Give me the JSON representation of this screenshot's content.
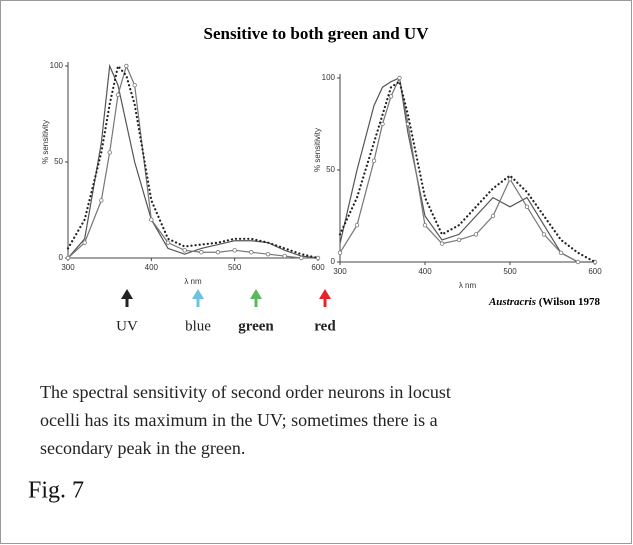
{
  "title": "Sensitive to both green and UV",
  "chart_data": [
    {
      "type": "line",
      "xlabel": "λ nm",
      "ylabel": "% sensitivity",
      "x": [
        300,
        320,
        340,
        350,
        360,
        370,
        380,
        400,
        420,
        440,
        460,
        480,
        500,
        520,
        540,
        560,
        580,
        600
      ],
      "xlim": [
        300,
        600
      ],
      "xticks": [
        300,
        400,
        500,
        600
      ],
      "ylim": [
        0,
        100
      ],
      "yticks": [
        0,
        50,
        100
      ],
      "series": [
        {
          "color": "#555555",
          "style": "solid",
          "values": [
            0,
            10,
            60,
            100,
            90,
            70,
            50,
            20,
            5,
            2,
            5,
            7,
            9,
            9,
            8,
            4,
            1,
            0
          ]
        },
        {
          "color": "#777777",
          "style": "circles",
          "values": [
            0,
            8,
            30,
            55,
            85,
            100,
            90,
            20,
            8,
            4,
            3,
            3,
            4,
            3,
            2,
            1,
            0,
            0
          ]
        },
        {
          "color": "#222222",
          "style": "dotted",
          "values": [
            5,
            20,
            55,
            80,
            100,
            95,
            80,
            30,
            10,
            6,
            7,
            8,
            10,
            10,
            8,
            5,
            2,
            0
          ]
        }
      ]
    },
    {
      "type": "line",
      "xlabel": "λ nm",
      "ylabel": "% sensitivity",
      "x": [
        300,
        320,
        340,
        350,
        360,
        370,
        380,
        400,
        420,
        440,
        460,
        480,
        500,
        520,
        540,
        560,
        580,
        600
      ],
      "xlim": [
        300,
        600
      ],
      "xticks": [
        300,
        400,
        500,
        600
      ],
      "ylim": [
        0,
        100
      ],
      "yticks": [
        0,
        50,
        100
      ],
      "series": [
        {
          "color": "#555555",
          "style": "solid",
          "values": [
            10,
            50,
            85,
            95,
            98,
            100,
            70,
            25,
            12,
            15,
            25,
            35,
            30,
            35,
            20,
            5,
            0,
            0
          ]
        },
        {
          "color": "#777777",
          "style": "circles",
          "values": [
            5,
            20,
            55,
            75,
            90,
            100,
            75,
            20,
            10,
            12,
            15,
            25,
            45,
            30,
            15,
            5,
            0,
            0
          ]
        },
        {
          "color": "#222222",
          "style": "dotted",
          "values": [
            15,
            35,
            65,
            80,
            95,
            98,
            80,
            35,
            15,
            20,
            30,
            40,
            47,
            38,
            25,
            12,
            5,
            0
          ]
        }
      ]
    }
  ],
  "arrows": [
    {
      "label": "UV",
      "color": "#222222",
      "bold": false
    },
    {
      "label": "blue",
      "color": "#6cc3e0",
      "bold": false
    },
    {
      "label": "green",
      "color": "#5cb85c",
      "bold": true
    },
    {
      "label": "red",
      "color": "#e8242a",
      "bold": true
    }
  ],
  "source": {
    "italic": "Austracris",
    "rest": " (Wilson 1978"
  },
  "caption": [
    "The spectral sensitivity of second order neurons in locust",
    "ocelli has its maximum in the UV; sometimes there is a",
    "secondary peak in the green."
  ],
  "figure_label": "Fig. 7"
}
